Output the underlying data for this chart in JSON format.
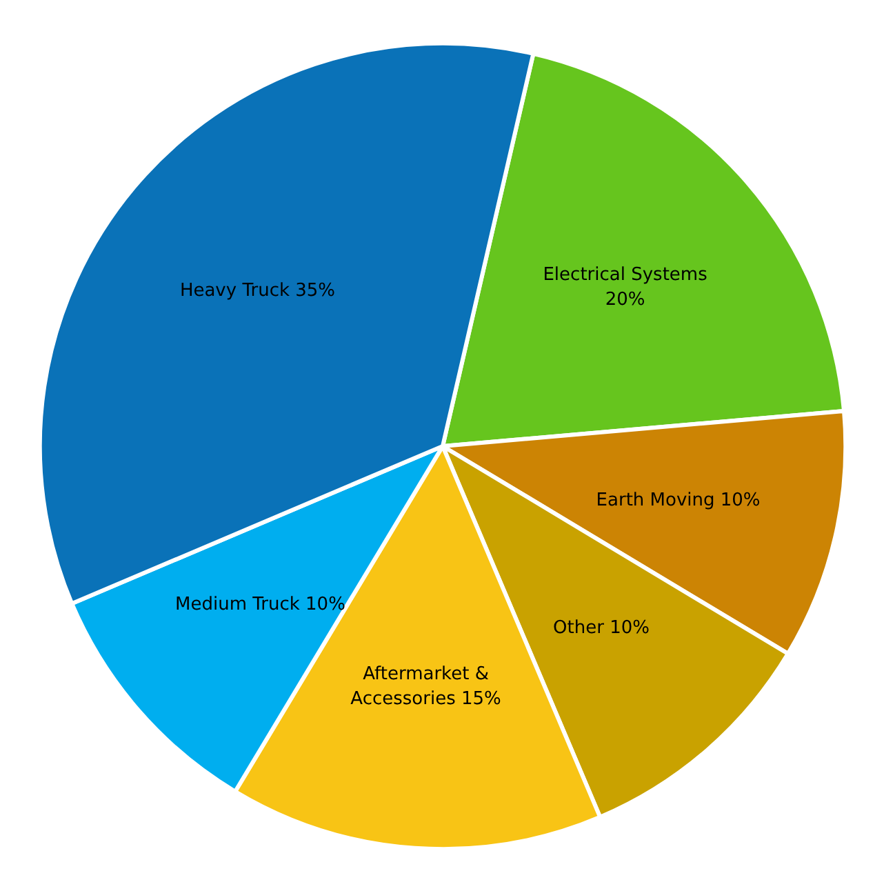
{
  "chart_data": {
    "type": "pie",
    "categories": [
      "Electrical Systems",
      "Earth Moving",
      "Other",
      "Aftermarket & Accessories",
      "Medium Truck",
      "Heavy Truck"
    ],
    "values": [
      20,
      10,
      10,
      15,
      10,
      35
    ],
    "colors": [
      "#66c51e",
      "#cc8404",
      "#c9a200",
      "#f8c415",
      "#00aeef",
      "#0a72b8"
    ],
    "value_labels": [
      "20%",
      "10%",
      "10%",
      "15%",
      "10%",
      "35%"
    ]
  }
}
